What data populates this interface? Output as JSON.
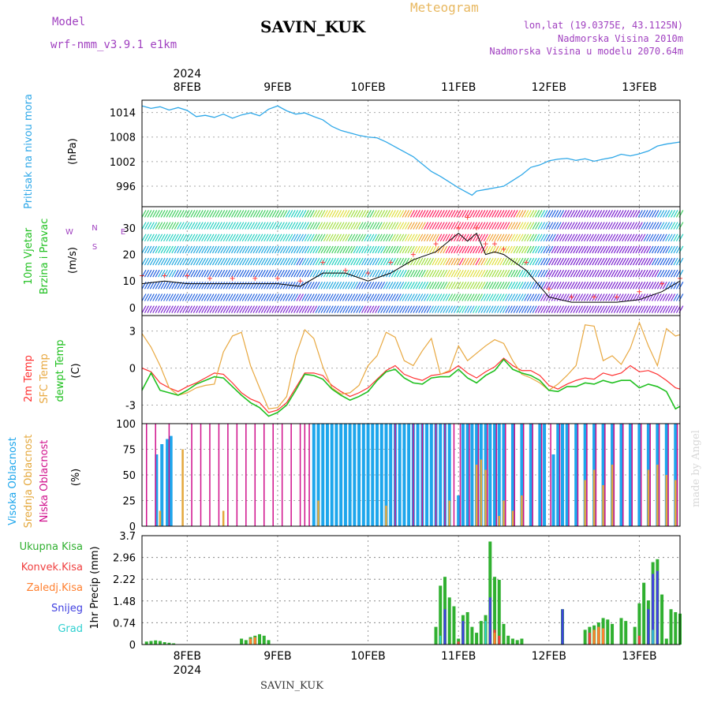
{
  "header": {
    "model_label": "Model",
    "model_name": "wrf-nmm_v3.9.1  e1km",
    "station": "SAVIN_KUK",
    "chart_title": "Meteogram",
    "lonlat": "lon,lat (19.0375E, 43.1125N)",
    "elevation": "Nadmorska Visina 2010m",
    "model_elevation": "Nadmorska Visina u modelu 2070.64m",
    "footer_station": "SAVIN_KUK",
    "credit": "made by Angel"
  },
  "colors": {
    "pressure": "#2fa8e8",
    "temp2m": "#ff3030",
    "sfc_temp": "#e8a840",
    "dewpoint": "#20c020",
    "high_cloud": "#1da6ec",
    "mid_cloud": "#e4a83c",
    "low_cloud": "#d0108c",
    "total_precip": "#30b030",
    "conv_precip": "#f04040",
    "frozen_precip": "#ff8030",
    "snow": "#4040e0",
    "graupel": "#30d0d0",
    "purple_text": "#a040c0",
    "title_orange": "#e8b860"
  },
  "axes": {
    "top_year": "2024",
    "bottom_year": "2024",
    "dates": [
      "8FEB",
      "9FEB",
      "10FEB",
      "11FEB",
      "12FEB",
      "13FEB"
    ]
  },
  "chart_data": [
    {
      "type": "line",
      "panel": "pressure",
      "ylabel": "Pritisak na nivou mora",
      "unit": "(hPa)",
      "yticks": [
        "1014",
        "1008",
        "1002",
        "996"
      ],
      "ylim": [
        991,
        1017
      ],
      "x": [
        -0.5,
        -0.4,
        -0.3,
        -0.2,
        -0.1,
        0.0,
        0.1,
        0.2,
        0.3,
        0.4,
        0.5,
        0.6,
        0.7,
        0.8,
        0.9,
        1.0,
        1.1,
        1.2,
        1.3,
        1.4,
        1.5,
        1.6,
        1.7,
        1.8,
        1.9,
        2.0,
        2.1,
        2.2,
        2.3,
        2.4,
        2.5,
        2.6,
        2.7,
        2.8,
        2.9,
        3.0,
        3.1,
        3.15,
        3.2,
        3.3,
        3.4,
        3.5,
        3.6,
        3.7,
        3.8,
        3.9,
        4.0,
        4.1,
        4.2,
        4.3,
        4.4,
        4.5,
        4.6,
        4.7,
        4.8,
        4.9,
        5.0,
        5.1,
        5.2,
        5.3,
        5.45
      ],
      "values": [
        1015.6,
        1015.0,
        1015.4,
        1014.6,
        1015.2,
        1014.5,
        1013.0,
        1013.3,
        1012.8,
        1013.6,
        1012.6,
        1013.4,
        1013.9,
        1013.2,
        1014.8,
        1015.6,
        1014.4,
        1013.6,
        1013.9,
        1013.0,
        1012.2,
        1010.6,
        1009.6,
        1009.0,
        1008.4,
        1008.0,
        1007.8,
        1006.8,
        1005.6,
        1004.4,
        1003.2,
        1001.4,
        999.6,
        998.4,
        997.0,
        995.6,
        994.4,
        993.8,
        994.8,
        995.2,
        995.6,
        996.0,
        997.4,
        998.8,
        1000.6,
        1001.2,
        1002.2,
        1002.6,
        1002.8,
        1002.3,
        1002.7,
        1002.1,
        1002.6,
        1003.0,
        1003.8,
        1003.4,
        1003.9,
        1004.6,
        1005.8,
        1006.3,
        1006.8
      ]
    },
    {
      "type": "wind_barbs_heatmap",
      "panel": "wind",
      "ylabel": "10m Vjetar Brzina i Pravac",
      "unit": "(m/s)",
      "compass_legend": "N, W, E, S",
      "yticks": [
        "30",
        "20",
        "10",
        "0"
      ],
      "ylim": [
        -3,
        38
      ],
      "series": [
        {
          "name": "speed",
          "x": [
            -0.5,
            -0.25,
            0.0,
            0.25,
            0.5,
            0.75,
            1.0,
            1.25,
            1.5,
            1.75,
            2.0,
            2.25,
            2.5,
            2.75,
            3.0,
            3.1,
            3.2,
            3.3,
            3.4,
            3.5,
            3.75,
            4.0,
            4.25,
            4.5,
            4.75,
            5.0,
            5.25,
            5.45
          ],
          "values": [
            9,
            10,
            9,
            9,
            9,
            9,
            9,
            8,
            13,
            13,
            10,
            13,
            18,
            21,
            28,
            25,
            28,
            20,
            21,
            20,
            14,
            4,
            2,
            2,
            2,
            3,
            6,
            10
          ]
        },
        {
          "name": "gust",
          "x": [
            -0.5,
            -0.25,
            0.0,
            0.25,
            0.5,
            0.75,
            1.0,
            1.25,
            1.5,
            1.75,
            2.0,
            2.25,
            2.5,
            2.75,
            3.0,
            3.1,
            3.2,
            3.3,
            3.4,
            3.5,
            3.75,
            4.0,
            4.25,
            4.5,
            4.75,
            5.0,
            5.25,
            5.45
          ],
          "values": [
            12,
            12,
            12,
            11,
            11,
            11,
            11,
            10,
            17,
            14,
            13,
            17,
            20,
            24,
            30,
            34,
            30,
            24,
            24,
            22,
            17,
            7,
            4,
            4,
            4,
            6,
            9,
            11
          ]
        }
      ]
    },
    {
      "type": "line",
      "panel": "temperature",
      "ylabel": "2m Temp, SFC Temp, dewpt Temp",
      "unit": "(C)",
      "yticks": [
        "3",
        "0",
        "-3"
      ],
      "ylim": [
        -4.5,
        4.0
      ],
      "x": [
        -0.5,
        -0.4,
        -0.3,
        -0.2,
        -0.1,
        0.0,
        0.1,
        0.2,
        0.3,
        0.4,
        0.5,
        0.6,
        0.7,
        0.8,
        0.9,
        1.0,
        1.1,
        1.2,
        1.3,
        1.4,
        1.5,
        1.6,
        1.7,
        1.8,
        1.9,
        2.0,
        2.1,
        2.2,
        2.3,
        2.4,
        2.5,
        2.6,
        2.7,
        2.8,
        2.9,
        3.0,
        3.1,
        3.2,
        3.3,
        3.4,
        3.5,
        3.6,
        3.7,
        3.8,
        3.9,
        4.0,
        4.1,
        4.2,
        4.3,
        4.4,
        4.5,
        4.6,
        4.7,
        4.8,
        4.9,
        5.0,
        5.1,
        5.2,
        5.3,
        5.4,
        5.45
      ],
      "series": [
        {
          "name": "2m Temp",
          "values": [
            0.0,
            -0.3,
            -1.2,
            -1.6,
            -1.9,
            -1.5,
            -1.2,
            -0.8,
            -0.4,
            -0.5,
            -1.2,
            -2.0,
            -2.5,
            -2.8,
            -3.6,
            -3.4,
            -2.8,
            -1.6,
            -0.4,
            -0.4,
            -0.6,
            -1.4,
            -1.9,
            -2.3,
            -2.0,
            -1.6,
            -0.9,
            -0.2,
            0.2,
            -0.5,
            -0.8,
            -1.0,
            -0.6,
            -0.5,
            -0.3,
            0.2,
            -0.4,
            -0.8,
            -0.3,
            0.1,
            0.8,
            0.2,
            -0.2,
            -0.2,
            -0.6,
            -1.4,
            -1.7,
            -1.3,
            -1.0,
            -0.8,
            -0.9,
            -0.4,
            -0.6,
            -0.4,
            0.2,
            -0.3,
            -0.2,
            -0.5,
            -1.0,
            -1.6,
            -1.7
          ]
        },
        {
          "name": "SFC Temp",
          "values": [
            2.8,
            1.7,
            0.2,
            -1.6,
            -2.2,
            -2.0,
            -1.6,
            -1.4,
            -1.3,
            1.3,
            2.6,
            2.9,
            0.2,
            -1.6,
            -3.3,
            -3.2,
            -2.3,
            1.0,
            3.1,
            2.4,
            0.1,
            -1.6,
            -2.1,
            -2.0,
            -1.4,
            0.2,
            1.0,
            2.9,
            2.5,
            0.6,
            0.2,
            1.4,
            2.4,
            -0.5,
            -0.2,
            1.8,
            0.6,
            1.2,
            1.8,
            2.3,
            2.0,
            0.6,
            -0.5,
            -0.8,
            -1.2,
            -1.8,
            -1.3,
            -0.6,
            0.2,
            3.5,
            3.4,
            0.6,
            1.0,
            0.3,
            1.6,
            3.7,
            1.8,
            0.2,
            3.2,
            2.6,
            2.7
          ]
        },
        {
          "name": "dewpt Temp",
          "values": [
            -1.8,
            -0.4,
            -1.8,
            -2.0,
            -2.2,
            -1.8,
            -1.3,
            -1.0,
            -0.7,
            -0.8,
            -1.5,
            -2.2,
            -2.8,
            -3.2,
            -3.9,
            -3.6,
            -3.0,
            -1.8,
            -0.5,
            -0.6,
            -0.9,
            -1.7,
            -2.2,
            -2.6,
            -2.3,
            -1.9,
            -1.0,
            -0.3,
            -0.1,
            -0.8,
            -1.2,
            -1.3,
            -0.8,
            -0.7,
            -0.7,
            -0.1,
            -0.8,
            -1.2,
            -0.6,
            -0.2,
            0.7,
            -0.1,
            -0.4,
            -0.6,
            -1.0,
            -1.8,
            -1.9,
            -1.5,
            -1.5,
            -1.2,
            -1.3,
            -1.0,
            -1.2,
            -1.0,
            -1.0,
            -1.6,
            -1.3,
            -1.5,
            -1.9,
            -3.3,
            -3.1
          ]
        }
      ]
    },
    {
      "type": "bar",
      "panel": "cloud",
      "ylabel": "Visoka Oblacnost, Srednja Oblacnost, Niska Oblacnost",
      "unit": "(%)",
      "yticks": [
        "100",
        "75",
        "50",
        "25",
        "0"
      ],
      "ylim": [
        0,
        100
      ],
      "series": [
        {
          "name": "Visoka Oblacnost",
          "x": [
            -0.34,
            -0.28,
            -0.22,
            -0.18,
            1.4,
            1.45,
            1.5,
            1.55,
            1.6,
            1.65,
            1.7,
            1.75,
            1.8,
            1.85,
            1.9,
            1.95,
            2.0,
            2.05,
            2.1,
            2.15,
            2.2,
            2.25,
            2.3,
            2.35,
            2.4,
            2.45,
            2.5,
            2.55,
            2.6,
            2.65,
            2.7,
            2.75,
            2.8,
            2.85,
            2.9,
            3.0,
            3.05,
            3.1,
            3.15,
            3.2,
            3.25,
            3.3,
            3.35,
            3.4,
            3.45,
            3.5,
            3.6,
            3.7,
            3.8,
            3.9,
            3.95,
            4.05,
            4.1,
            4.15,
            4.2,
            4.3,
            4.4,
            4.5,
            4.6,
            4.7,
            4.8,
            4.9,
            5.0,
            5.1,
            5.2,
            5.3,
            5.4
          ],
          "values": [
            70,
            80,
            85,
            88,
            100,
            100,
            100,
            100,
            100,
            100,
            100,
            100,
            100,
            100,
            100,
            100,
            100,
            100,
            100,
            100,
            100,
            100,
            100,
            100,
            100,
            100,
            100,
            100,
            100,
            100,
            100,
            100,
            100,
            100,
            100,
            30,
            100,
            100,
            100,
            100,
            100,
            100,
            100,
            100,
            100,
            100,
            100,
            100,
            100,
            100,
            100,
            70,
            100,
            100,
            100,
            100,
            100,
            100,
            100,
            100,
            100,
            100,
            100,
            100,
            100,
            100,
            100
          ]
        },
        {
          "name": "Srednja Oblacnost",
          "x": [
            -0.3,
            -0.05,
            0.4,
            1.45,
            2.2,
            2.9,
            3.2,
            3.25,
            3.3,
            3.45,
            3.5,
            3.6,
            3.7,
            4.4,
            4.5,
            4.6,
            4.7,
            5.1,
            5.2,
            5.3,
            5.4
          ],
          "values": [
            15,
            75,
            15,
            25,
            20,
            25,
            60,
            65,
            55,
            10,
            25,
            15,
            30,
            45,
            55,
            40,
            60,
            55,
            60,
            50,
            45
          ]
        },
        {
          "name": "Niska Oblacnost",
          "x": [
            -0.45,
            -0.35,
            -0.2,
            0.05,
            0.15,
            0.25,
            0.35,
            0.45,
            0.55,
            0.65,
            0.75,
            0.85,
            0.95,
            1.05,
            1.15,
            1.25,
            1.3,
            1.35,
            2.3,
            2.5,
            2.6,
            2.75,
            2.85,
            2.95,
            3.02,
            3.12,
            3.22,
            3.32,
            3.42,
            3.52,
            3.62,
            3.72,
            3.82,
            3.92,
            4.02,
            4.12,
            4.22,
            4.32,
            4.42,
            4.52,
            4.62,
            4.72,
            4.82,
            4.92,
            5.02,
            5.12,
            5.22,
            5.32,
            5.42
          ],
          "values": [
            100,
            100,
            100,
            100,
            100,
            100,
            100,
            100,
            100,
            100,
            100,
            100,
            100,
            100,
            100,
            100,
            100,
            100,
            100,
            100,
            100,
            100,
            100,
            100,
            100,
            100,
            100,
            100,
            100,
            100,
            100,
            100,
            100,
            100,
            100,
            100,
            100,
            100,
            100,
            100,
            100,
            100,
            100,
            100,
            100,
            100,
            100,
            100,
            100
          ]
        }
      ]
    },
    {
      "type": "bar",
      "panel": "precipitation",
      "ylabel": "1hr Precip",
      "unit": "(mm)",
      "yticks": [
        "3.7",
        "2.96",
        "2.22",
        "1.48",
        "0.74",
        "0"
      ],
      "ylim": [
        0,
        3.7
      ],
      "legend": [
        "Ukupna Kisa",
        "Konvek.Kisa",
        "Zaledj.Kisa",
        "Snijeg",
        "Grad"
      ],
      "series": [
        {
          "name": "Ukupna Kisa",
          "x": [
            -0.45,
            -0.4,
            -0.35,
            -0.3,
            -0.25,
            -0.2,
            -0.15,
            0.6,
            0.65,
            0.7,
            0.75,
            0.8,
            0.85,
            0.9,
            2.75,
            2.8,
            2.85,
            2.9,
            2.95,
            3.0,
            3.05,
            3.1,
            3.15,
            3.2,
            3.25,
            3.3,
            3.35,
            3.4,
            3.45,
            3.5,
            3.55,
            3.6,
            3.65,
            3.7,
            4.15,
            4.4,
            4.45,
            4.5,
            4.55,
            4.6,
            4.65,
            4.7,
            4.8,
            4.85,
            4.95,
            5.0,
            5.05,
            5.1,
            5.15,
            5.2,
            5.25,
            5.3,
            5.35,
            5.4,
            5.45
          ],
          "values": [
            0.1,
            0.12,
            0.14,
            0.12,
            0.08,
            0.06,
            0.04,
            0.2,
            0.15,
            0.25,
            0.3,
            0.35,
            0.3,
            0.15,
            0.6,
            2.0,
            2.3,
            1.6,
            1.3,
            0.2,
            1.0,
            1.1,
            0.6,
            0.4,
            0.8,
            1.0,
            3.5,
            2.3,
            2.2,
            0.7,
            0.3,
            0.2,
            0.15,
            0.2,
            1.2,
            0.5,
            0.6,
            0.65,
            0.75,
            0.9,
            0.85,
            0.7,
            0.9,
            0.8,
            0.6,
            1.4,
            2.1,
            1.5,
            2.8,
            2.9,
            1.7,
            0.2,
            1.2,
            1.1,
            1.05
          ]
        },
        {
          "name": "Konvek.Kisa",
          "x": [
            3.0,
            3.35,
            3.4,
            3.45,
            4.45,
            4.55,
            5.0
          ],
          "values": [
            0.1,
            0.4,
            0.5,
            0.3,
            0.4,
            0.5,
            0.3
          ]
        },
        {
          "name": "Zaledj.Kisa",
          "x": [
            0.7,
            0.75,
            3.4,
            4.5,
            4.55,
            4.6
          ],
          "values": [
            0.2,
            0.25,
            0.4,
            0.5,
            0.6,
            0.55
          ]
        },
        {
          "name": "Snijeg",
          "x": [
            2.85,
            3.05,
            3.35,
            4.15,
            5.1,
            5.15,
            5.2
          ],
          "values": [
            1.2,
            0.8,
            1.6,
            1.2,
            1.2,
            2.4,
            2.5
          ]
        },
        {
          "name": "Grad",
          "x": [
            2.8,
            3.3,
            5.15
          ],
          "values": [
            0.3,
            0.8,
            0.5
          ]
        }
      ]
    }
  ]
}
